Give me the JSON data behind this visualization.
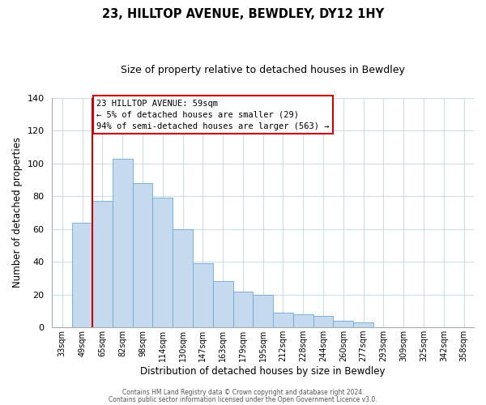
{
  "title": "23, HILLTOP AVENUE, BEWDLEY, DY12 1HY",
  "subtitle": "Size of property relative to detached houses in Bewdley",
  "xlabel": "Distribution of detached houses by size in Bewdley",
  "ylabel": "Number of detached properties",
  "bar_labels": [
    "33sqm",
    "49sqm",
    "65sqm",
    "82sqm",
    "98sqm",
    "114sqm",
    "130sqm",
    "147sqm",
    "163sqm",
    "179sqm",
    "195sqm",
    "212sqm",
    "228sqm",
    "244sqm",
    "260sqm",
    "277sqm",
    "293sqm",
    "309sqm",
    "325sqm",
    "342sqm",
    "358sqm"
  ],
  "bar_values": [
    0,
    64,
    77,
    103,
    88,
    79,
    60,
    39,
    28,
    22,
    20,
    9,
    8,
    7,
    4,
    3,
    0,
    0,
    0,
    0,
    0
  ],
  "bar_color": "#c5d9ef",
  "bar_edge_color": "#6fa8d6",
  "vline_color": "#cc0000",
  "ylim": [
    0,
    140
  ],
  "yticks": [
    0,
    20,
    40,
    60,
    80,
    100,
    120,
    140
  ],
  "annotation_title": "23 HILLTOP AVENUE: 59sqm",
  "annotation_line1": "← 5% of detached houses are smaller (29)",
  "annotation_line2": "94% of semi-detached houses are larger (563) →",
  "annotation_box_color": "#ffffff",
  "annotation_box_edge": "#cc0000",
  "footer_line1": "Contains HM Land Registry data © Crown copyright and database right 2024.",
  "footer_line2": "Contains public sector information licensed under the Open Government Licence v3.0.",
  "background_color": "#ffffff",
  "grid_color": "#d0dce8"
}
